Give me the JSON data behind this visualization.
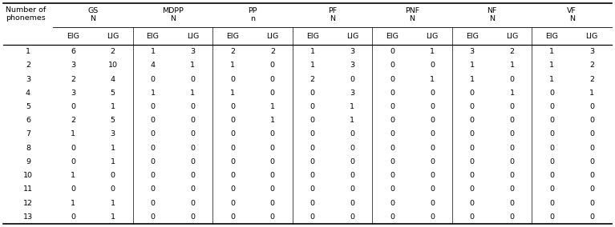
{
  "col_groups": [
    {
      "label_top": "GS",
      "label_bot": "N",
      "sub": [
        "EIG",
        "LIG"
      ]
    },
    {
      "label_top": "MDPP",
      "label_bot": "N",
      "sub": [
        "EIG",
        "LIG"
      ]
    },
    {
      "label_top": "PP",
      "label_bot": "n",
      "sub": [
        "EIG",
        "LIG"
      ]
    },
    {
      "label_top": "PF",
      "label_bot": "N",
      "sub": [
        "EIG",
        "LIG"
      ]
    },
    {
      "label_top": "PNF",
      "label_bot": "N",
      "sub": [
        "EIG",
        "LIG"
      ]
    },
    {
      "label_top": "NF",
      "label_bot": "N",
      "sub": [
        "EIG",
        "LIG"
      ]
    },
    {
      "label_top": "VF",
      "label_bot": "N",
      "sub": [
        "EIG",
        "LIG"
      ]
    }
  ],
  "row_header_line1": "Number of",
  "row_header_line2": "phonemes",
  "rows": [
    [
      1,
      6,
      2,
      1,
      3,
      2,
      2,
      1,
      3,
      0,
      1,
      3,
      2,
      1,
      3
    ],
    [
      2,
      3,
      10,
      4,
      1,
      1,
      0,
      1,
      3,
      0,
      0,
      1,
      1,
      1,
      2
    ],
    [
      3,
      2,
      4,
      0,
      0,
      0,
      0,
      2,
      0,
      0,
      1,
      1,
      0,
      1,
      2
    ],
    [
      4,
      3,
      5,
      1,
      1,
      1,
      0,
      0,
      3,
      0,
      0,
      0,
      1,
      0,
      1
    ],
    [
      5,
      0,
      1,
      0,
      0,
      0,
      1,
      0,
      1,
      0,
      0,
      0,
      0,
      0,
      0
    ],
    [
      6,
      2,
      5,
      0,
      0,
      0,
      1,
      0,
      1,
      0,
      0,
      0,
      0,
      0,
      0
    ],
    [
      7,
      1,
      3,
      0,
      0,
      0,
      0,
      0,
      0,
      0,
      0,
      0,
      0,
      0,
      0
    ],
    [
      8,
      0,
      1,
      0,
      0,
      0,
      0,
      0,
      0,
      0,
      0,
      0,
      0,
      0,
      0
    ],
    [
      9,
      0,
      1,
      0,
      0,
      0,
      0,
      0,
      0,
      0,
      0,
      0,
      0,
      0,
      0
    ],
    [
      10,
      1,
      0,
      0,
      0,
      0,
      0,
      0,
      0,
      0,
      0,
      0,
      0,
      0,
      0
    ],
    [
      11,
      0,
      0,
      0,
      0,
      0,
      0,
      0,
      0,
      0,
      0,
      0,
      0,
      0,
      0
    ],
    [
      12,
      1,
      1,
      0,
      0,
      0,
      0,
      0,
      0,
      0,
      0,
      0,
      0,
      0,
      0
    ],
    [
      13,
      0,
      1,
      0,
      0,
      0,
      0,
      0,
      0,
      0,
      0,
      0,
      0,
      0,
      0
    ]
  ],
  "bg_color": "#ffffff",
  "text_color": "#000000",
  "line_color": "#000000",
  "font_size": 6.8
}
